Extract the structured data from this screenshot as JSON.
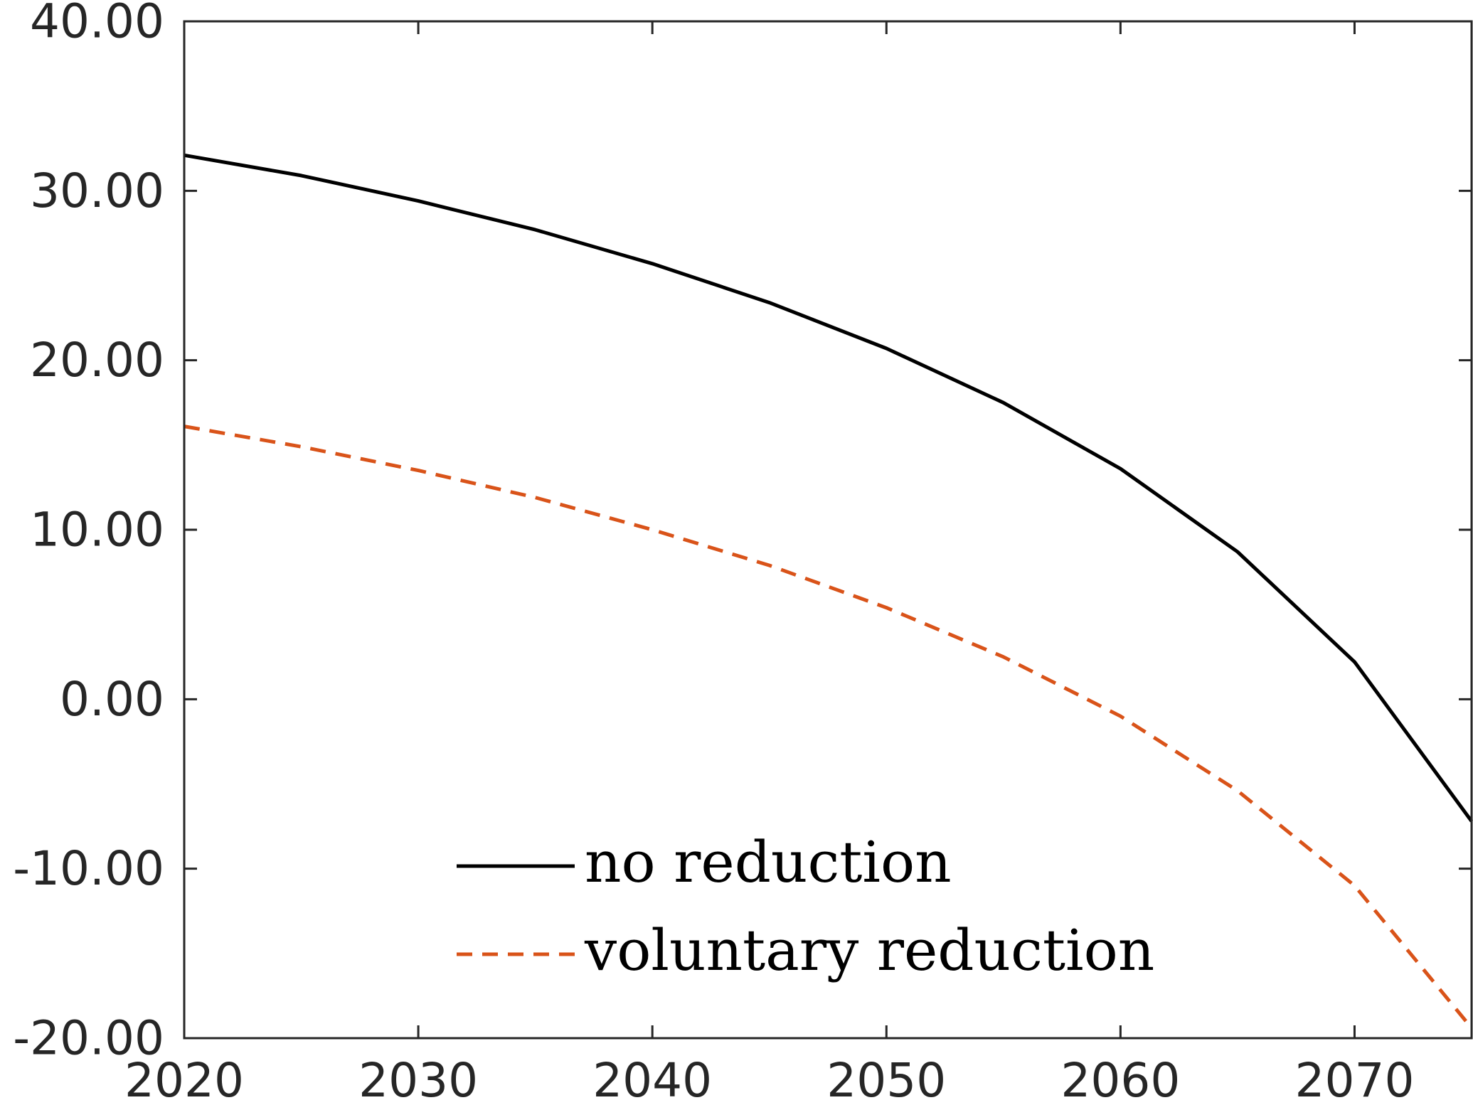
{
  "chart_data": {
    "type": "line",
    "title": "",
    "xlabel": "",
    "ylabel": "",
    "xlim": [
      2020,
      2075
    ],
    "ylim": [
      -20,
      40
    ],
    "x_ticks": [
      {
        "value": 2020,
        "label": "2020"
      },
      {
        "value": 2030,
        "label": "2030"
      },
      {
        "value": 2040,
        "label": "2040"
      },
      {
        "value": 2050,
        "label": "2050"
      },
      {
        "value": 2060,
        "label": "2060"
      },
      {
        "value": 2070,
        "label": "2070"
      }
    ],
    "y_ticks": [
      {
        "value": -20,
        "label": "-20.00"
      },
      {
        "value": -10,
        "label": "-10.00"
      },
      {
        "value": 0,
        "label": "0.00"
      },
      {
        "value": 10,
        "label": "10.00"
      },
      {
        "value": 20,
        "label": "20.00"
      },
      {
        "value": 30,
        "label": "30.00"
      },
      {
        "value": 40,
        "label": "40.00"
      }
    ],
    "x": [
      2020,
      2025,
      2030,
      2035,
      2040,
      2045,
      2050,
      2055,
      2060,
      2065,
      2070,
      2075
    ],
    "series": [
      {
        "name": "no reduction",
        "color": "#000000",
        "dash": "solid",
        "values": [
          32.1,
          30.9,
          29.4,
          27.7,
          25.7,
          23.4,
          20.7,
          17.5,
          13.6,
          8.7,
          2.2,
          -7.2
        ]
      },
      {
        "name": "voluntary reduction",
        "color": "#D95319",
        "dash": "dashed",
        "values": [
          16.1,
          14.9,
          13.5,
          11.9,
          10.0,
          7.9,
          5.4,
          2.5,
          -1.0,
          -5.4,
          -11.0,
          -19.4
        ]
      }
    ],
    "grid": false,
    "legend": "bottom-center"
  }
}
